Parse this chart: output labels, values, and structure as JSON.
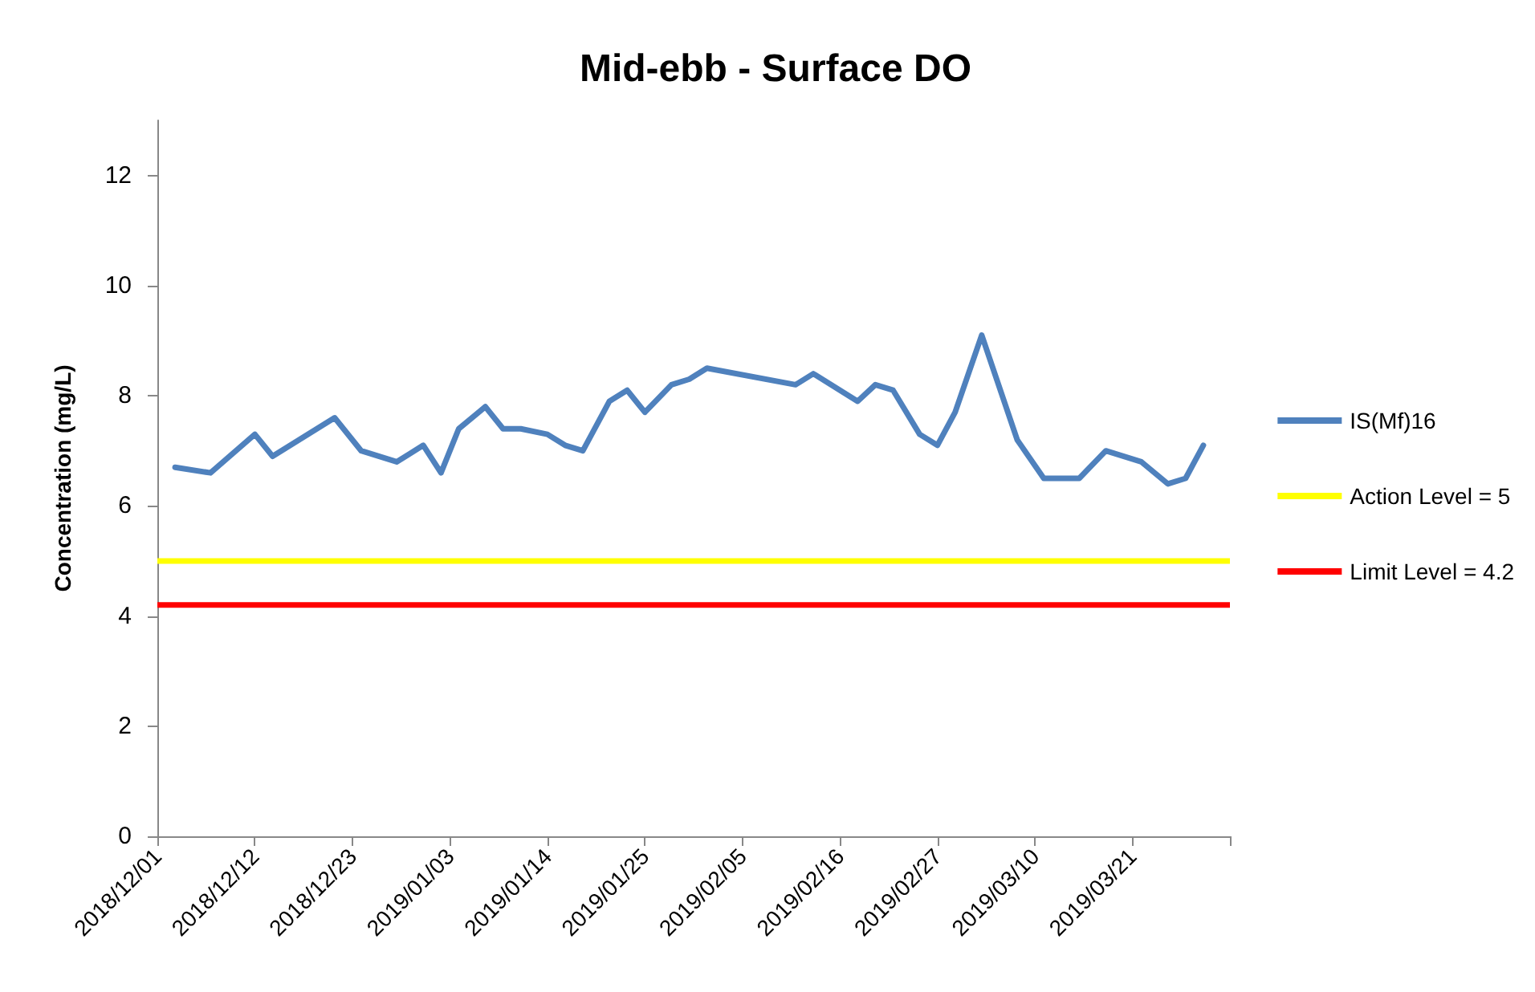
{
  "chart_data": {
    "type": "line",
    "title": "Mid-ebb - Surface DO",
    "ylabel": "Concentration (mg/L)",
    "x": [
      "2018-12-03",
      "2018-12-07",
      "2018-12-12",
      "2018-12-14",
      "2018-12-21",
      "2018-12-24",
      "2018-12-28",
      "2018-12-31",
      "2019-01-02",
      "2019-01-04",
      "2019-01-07",
      "2019-01-09",
      "2019-01-11",
      "2019-01-14",
      "2019-01-16",
      "2019-01-18",
      "2019-01-21",
      "2019-01-23",
      "2019-01-25",
      "2019-01-28",
      "2019-01-30",
      "2019-02-01",
      "2019-02-11",
      "2019-02-13",
      "2019-02-18",
      "2019-02-20",
      "2019-02-22",
      "2019-02-25",
      "2019-02-27",
      "2019-03-01",
      "2019-03-04",
      "2019-03-08",
      "2019-03-11",
      "2019-03-15",
      "2019-03-18",
      "2019-03-22",
      "2019-03-25",
      "2019-03-27",
      "2019-03-29"
    ],
    "series": [
      {
        "name": "IS(Mf)16",
        "color": "#4f81bd",
        "values": [
          6.7,
          6.6,
          7.3,
          6.9,
          7.6,
          7.0,
          6.8,
          7.1,
          6.6,
          7.4,
          7.8,
          7.4,
          7.4,
          7.3,
          7.1,
          7.0,
          7.9,
          8.1,
          7.7,
          8.2,
          8.3,
          8.5,
          8.2,
          8.4,
          7.9,
          8.2,
          8.1,
          7.3,
          7.1,
          7.7,
          9.1,
          7.2,
          6.5,
          6.5,
          7.0,
          6.8,
          6.4,
          6.5,
          7.1
        ]
      }
    ],
    "ref_lines": [
      {
        "axis": "y",
        "value": 5,
        "label": "Action Level = 5",
        "color": "#ffff00"
      },
      {
        "axis": "y",
        "value": 4.2,
        "label": "Limit Level = 4.2",
        "color": "#ff0000"
      }
    ],
    "xlim": [
      "2018-12-01",
      "2019-04-01"
    ],
    "xticks": [
      {
        "value": "2018-12-01",
        "label": "2018/12/01"
      },
      {
        "value": "2018-12-12",
        "label": "2018/12/12"
      },
      {
        "value": "2018-12-23",
        "label": "2018/12/23"
      },
      {
        "value": "2019-01-03",
        "label": "2019/01/03"
      },
      {
        "value": "2019-01-14",
        "label": "2019/01/14"
      },
      {
        "value": "2019-01-25",
        "label": "2019/01/25"
      },
      {
        "value": "2019-02-05",
        "label": "2019/02/05"
      },
      {
        "value": "2019-02-16",
        "label": "2019/02/16"
      },
      {
        "value": "2019-02-27",
        "label": "2019/02/27"
      },
      {
        "value": "2019-03-10",
        "label": "2019/03/10"
      },
      {
        "value": "2019-03-21",
        "label": "2019/03/21"
      },
      {
        "value": "2019-04-01",
        "label": null
      }
    ],
    "ylim": [
      0,
      13
    ],
    "yticks": [
      0,
      2,
      4,
      6,
      8,
      10,
      12
    ],
    "grid": false,
    "legend": "right",
    "marker": "none",
    "line_style": "solid"
  }
}
